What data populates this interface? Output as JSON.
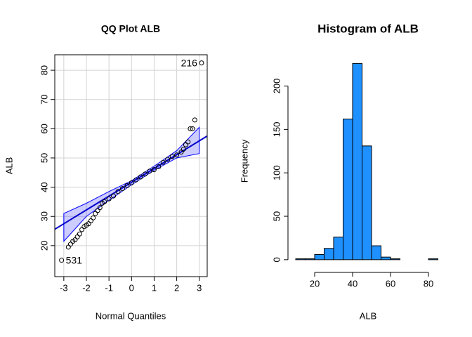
{
  "chart_data": [
    {
      "type": "qq",
      "title": "QQ Plot ALB",
      "x_label": "Normal Quantiles",
      "y_label": "ALB",
      "xlim": [
        -3.4,
        3.35
      ],
      "ylim": [
        9.4,
        85.3
      ],
      "xticks": [
        -3,
        -2,
        -1,
        0,
        1,
        2,
        3
      ],
      "yticks": [
        20,
        30,
        40,
        50,
        60,
        70,
        80
      ],
      "grid": true,
      "annotations": [
        "216",
        "531"
      ],
      "points": {
        "color": "#000000",
        "x": [
          -3.1,
          -2.8,
          -2.7,
          -2.6,
          -2.5,
          -2.4,
          -2.3,
          -2.2,
          -2.1,
          -2.0,
          -1.9,
          -1.8,
          -1.7,
          -1.6,
          -1.5,
          -1.4,
          -1.3,
          -1.2,
          -1.0,
          -0.8,
          -0.6,
          -0.4,
          -0.2,
          0,
          0.2,
          0.4,
          0.6,
          0.8,
          1.0,
          1.2,
          1.4,
          1.6,
          1.8,
          2.0,
          2.2,
          2.3,
          2.4,
          2.5,
          2.6,
          2.7,
          2.8,
          3.1
        ],
        "y": [
          15,
          19.5,
          20.5,
          21.5,
          22,
          23,
          24,
          25.5,
          26.5,
          27,
          27.5,
          28.5,
          29.5,
          31,
          32,
          33,
          34.5,
          35,
          36,
          37,
          38.5,
          39.5,
          40.5,
          41.5,
          42.5,
          43.5,
          44.5,
          45.5,
          46,
          47,
          48.5,
          49.5,
          50.5,
          51,
          52,
          53,
          54.5,
          55.5,
          60,
          60,
          63,
          82.5
        ]
      },
      "reference_line": {
        "color": "#0000cd",
        "x": [
          -3.4,
          3.35
        ],
        "y": [
          25.6,
          57.5
        ]
      },
      "confidence_band": {
        "color": "#0000ff",
        "x": [
          -3,
          -2,
          -1,
          0,
          1,
          2,
          3
        ],
        "lower": [
          21.5,
          30,
          35.5,
          40.8,
          45.8,
          50,
          51.5
        ],
        "upper": [
          31,
          34.5,
          38.5,
          42.2,
          47.2,
          52.5,
          60.5
        ]
      }
    },
    {
      "type": "histogram",
      "title": "Histogram of ALB",
      "x_label": "ALB",
      "y_label": "Frequency",
      "xlim": [
        10,
        85
      ],
      "ylim": [
        -9,
        236
      ],
      "xticks": [
        20,
        40,
        60,
        80
      ],
      "yticks": [
        0,
        50,
        100,
        150,
        200
      ],
      "color": "#1e90ff",
      "bins": [
        10,
        15,
        20,
        25,
        30,
        35,
        40,
        45,
        50,
        55,
        60,
        65,
        70,
        75,
        80,
        85
      ],
      "counts": [
        1,
        1,
        6,
        13,
        26,
        162,
        226,
        131,
        16,
        3,
        1,
        0,
        0,
        0,
        1
      ]
    }
  ]
}
